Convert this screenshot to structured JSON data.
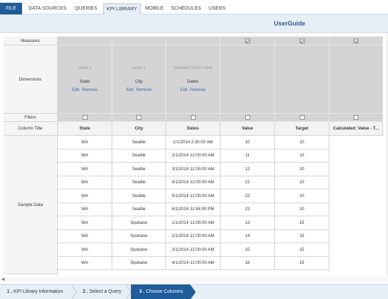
{
  "menu": {
    "items": [
      "FILE",
      "DATA SOURCES",
      "QUERIES",
      "KPI LIBRARY",
      "MOBILE",
      "SCHEDULES",
      "USERS"
    ],
    "active": "KPI LIBRARY"
  },
  "header": {
    "title": "UserGuide"
  },
  "grid": {
    "row_labels": {
      "measures": "Measures",
      "dimensions": "Dimensions",
      "filters": "Filters",
      "column_title": "Column Title",
      "sample_data": "Sample Data"
    },
    "dimensions": [
      {
        "level": "Level 1",
        "field": "State",
        "edit": "Edit",
        "remove": "Remove"
      },
      {
        "level": "Level 2",
        "field": "City",
        "edit": "Edit",
        "remove": "Remove"
      },
      {
        "level": "Selected Trend Label",
        "field": "Dates",
        "edit": "Edit",
        "remove": "Remove"
      }
    ],
    "columns": [
      "State",
      "City",
      "Dates",
      "Value",
      "Target",
      "Calculated: Value - T..."
    ],
    "rows": [
      [
        "WA",
        "Seattle",
        "1/1/2014 2:30:00 AM",
        "10",
        "10"
      ],
      [
        "WA",
        "Seattle",
        "2/1/2014 12:00:00 AM",
        "11",
        "10"
      ],
      [
        "WA",
        "Seattle",
        "3/1/2014 12:00:00 AM",
        "12",
        "10"
      ],
      [
        "WA",
        "Seattle",
        "4/1/2014 12:00:00 AM",
        "21",
        "10"
      ],
      [
        "WA",
        "Seattle",
        "5/1/2014 12:00:00 AM",
        "22",
        "10"
      ],
      [
        "WA",
        "Seattle",
        "6/1/2014 11:58:00 PM",
        "23",
        "10"
      ],
      [
        "WA",
        "Spokane",
        "1/1/2014 12:00:00 AM",
        "13",
        "15"
      ],
      [
        "WA",
        "Spokane",
        "2/1/2014 12:00:00 AM",
        "14",
        "15"
      ],
      [
        "WA",
        "Spokane",
        "3/1/2014 12:00:00 AM",
        "15",
        "15"
      ],
      [
        "WA",
        "Spokane",
        "4/1/2014 12:00:00 AM",
        "16",
        "15"
      ]
    ]
  },
  "wizard": {
    "steps": [
      {
        "num": "1 .",
        "label": "KPI Library Information"
      },
      {
        "num": "2 .",
        "label": "Select a Query"
      },
      {
        "num": "3 .",
        "label": "Choose Columns"
      }
    ],
    "active_step": 3
  },
  "colors": {
    "accent": "#1f5c9a",
    "link": "#2a6ab0",
    "header_band": "#e8eef5",
    "gray_panel": "#d4d4d4"
  }
}
